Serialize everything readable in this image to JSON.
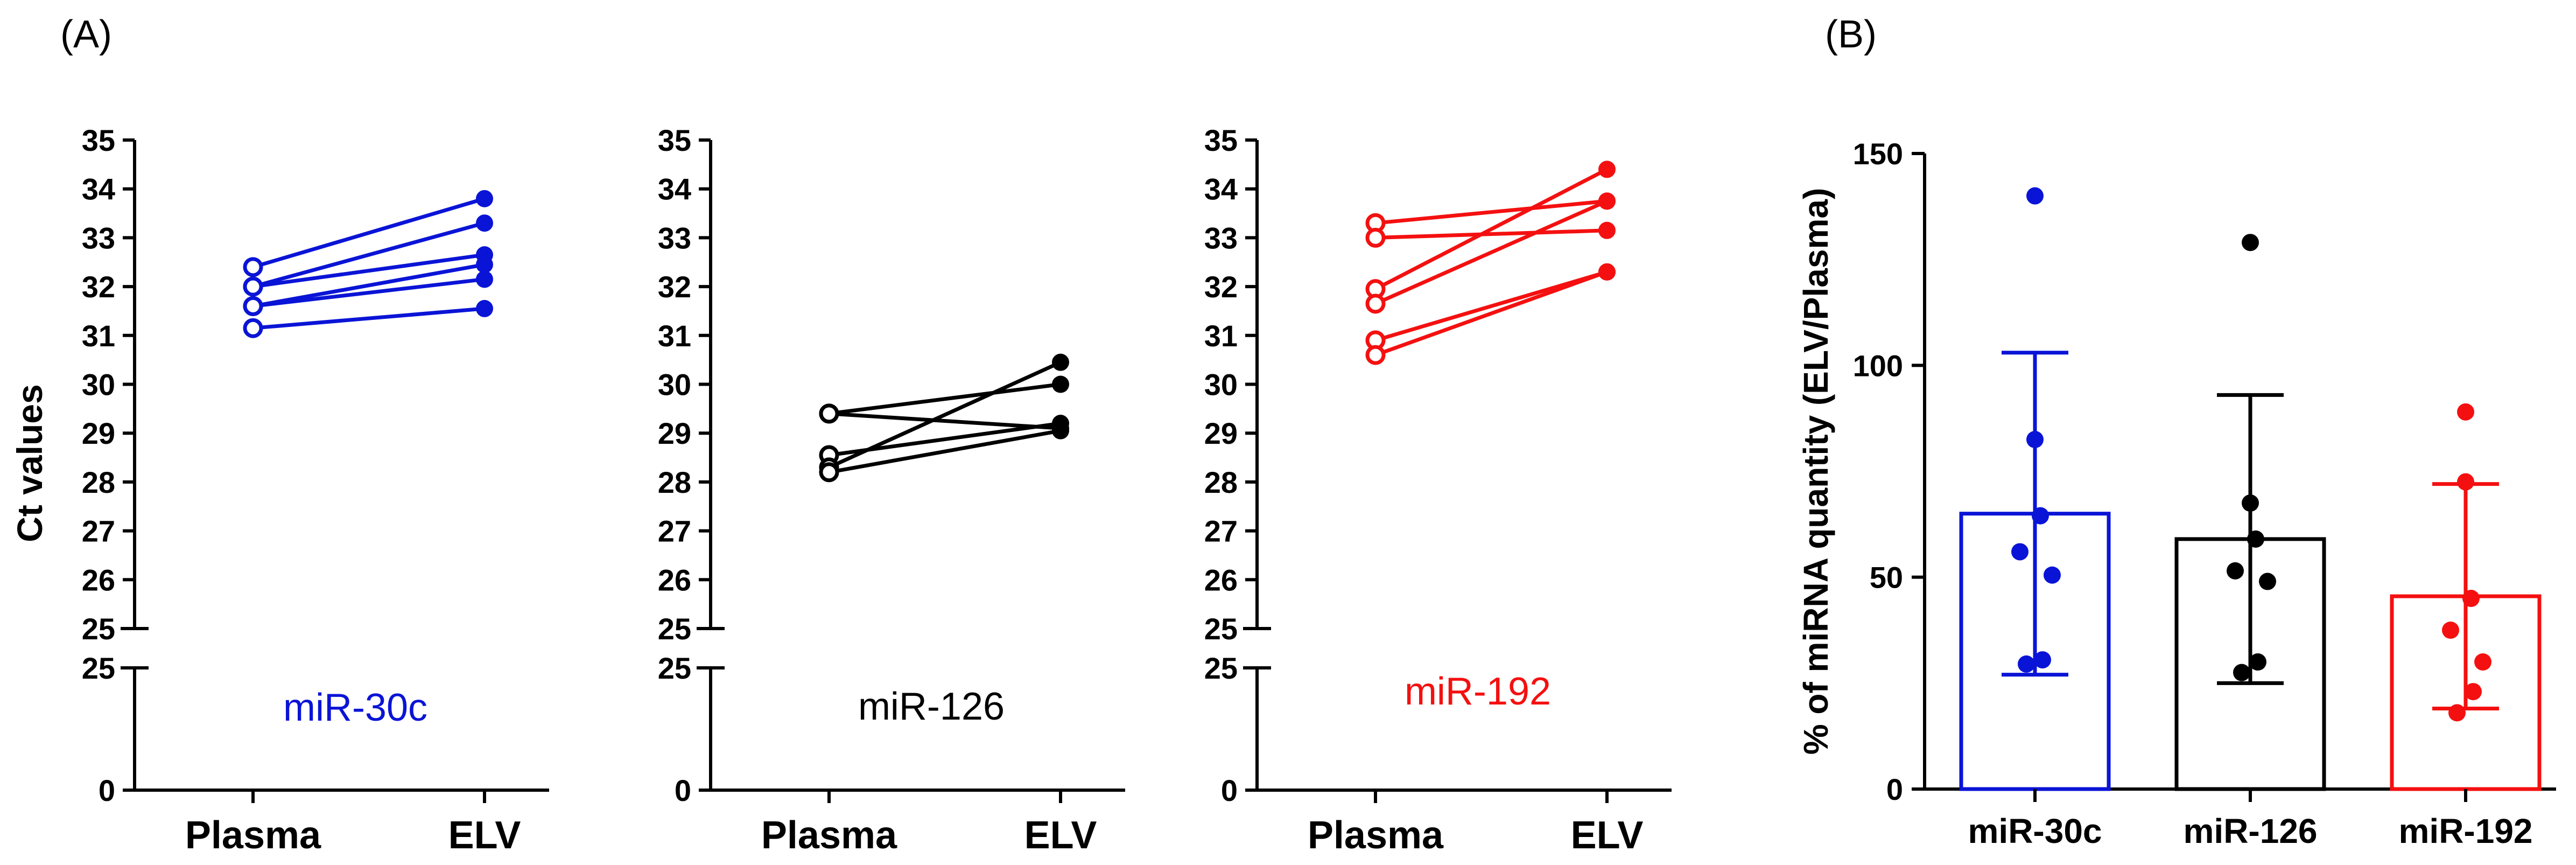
{
  "panel_labels": {
    "a": "(A)",
    "b": "(B)"
  },
  "colors": {
    "blue": "#0a14d6",
    "black": "#000000",
    "red": "#f41010"
  },
  "chart_data": [
    {
      "type": "paired-line",
      "panel": "A",
      "title": "miR-30c",
      "ylabel": "Ct values",
      "categories": [
        "Plasma",
        "ELV"
      ],
      "ylim": [
        25,
        35
      ],
      "yticks": [
        "25",
        "26",
        "27",
        "28",
        "29",
        "30",
        "31",
        "32",
        "33",
        "34",
        "35"
      ],
      "axis_break": true,
      "lower_ticks": [
        "0",
        "25"
      ],
      "color": "#0a14d6",
      "pairs": [
        [
          32.4,
          33.8
        ],
        [
          32.0,
          33.3
        ],
        [
          32.0,
          32.65
        ],
        [
          31.6,
          32.45
        ],
        [
          31.6,
          32.15
        ],
        [
          31.15,
          31.55
        ]
      ]
    },
    {
      "type": "paired-line",
      "panel": "A",
      "title": "miR-126",
      "ylabel": "",
      "categories": [
        "Plasma",
        "ELV"
      ],
      "ylim": [
        25,
        35
      ],
      "yticks": [
        "25",
        "26",
        "27",
        "28",
        "29",
        "30",
        "31",
        "32",
        "33",
        "34",
        "35"
      ],
      "axis_break": true,
      "lower_ticks": [
        "0",
        "25"
      ],
      "color": "#000000",
      "pairs": [
        [
          29.4,
          29.1
        ],
        [
          29.4,
          30.0
        ],
        [
          28.55,
          29.2
        ],
        [
          28.3,
          30.45
        ],
        [
          28.2,
          29.05
        ]
      ]
    },
    {
      "type": "paired-line",
      "panel": "A",
      "title": "miR-192",
      "ylabel": "",
      "categories": [
        "Plasma",
        "ELV"
      ],
      "ylim": [
        25,
        35
      ],
      "yticks": [
        "25",
        "26",
        "27",
        "28",
        "29",
        "30",
        "31",
        "32",
        "33",
        "34",
        "35"
      ],
      "axis_break": true,
      "lower_ticks": [
        "0",
        "25"
      ],
      "color": "#f41010",
      "pairs": [
        [
          33.3,
          33.75
        ],
        [
          33.0,
          33.15
        ],
        [
          31.95,
          34.4
        ],
        [
          31.65,
          33.75
        ],
        [
          30.9,
          32.3
        ],
        [
          30.6,
          32.3
        ]
      ]
    },
    {
      "type": "bar",
      "panel": "B",
      "title": "",
      "xlabel": "",
      "ylabel": "% of miRNA quantity (ELV/Plasma)",
      "categories": [
        "miR-30c",
        "miR-126",
        "miR-192"
      ],
      "ylim": [
        0,
        150
      ],
      "yticks": [
        "0",
        "50",
        "100",
        "150"
      ],
      "series": [
        {
          "name": "miR-30c",
          "color": "#0a14d6",
          "mean": 65,
          "sd_low": 27,
          "sd_high": 103,
          "points": [
            140,
            82.5,
            64.5,
            56,
            50.5,
            30.5,
            29.5
          ]
        },
        {
          "name": "miR-126",
          "color": "#000000",
          "mean": 59,
          "sd_low": 25,
          "sd_high": 93,
          "points": [
            129,
            67.5,
            59,
            51.5,
            49,
            30,
            27.5
          ]
        },
        {
          "name": "miR-192",
          "color": "#f41010",
          "mean": 45.5,
          "sd_low": 19,
          "sd_high": 72,
          "points": [
            89,
            72.5,
            45,
            37.5,
            30,
            23,
            18
          ]
        }
      ]
    }
  ]
}
